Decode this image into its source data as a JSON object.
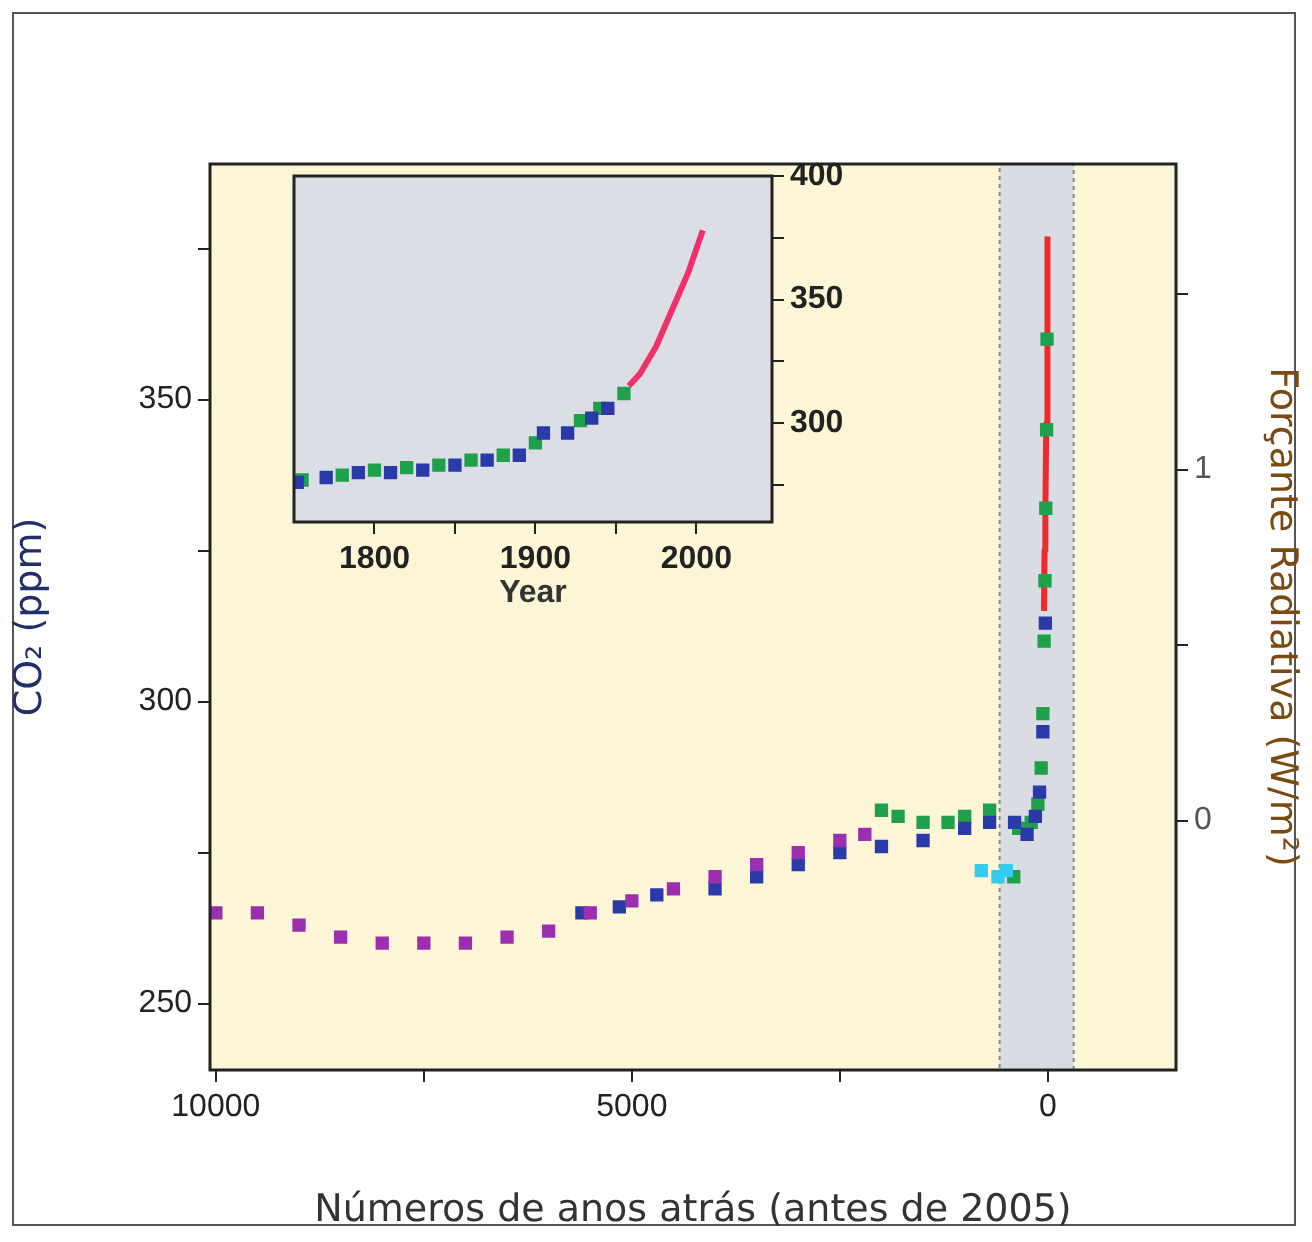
{
  "chart_data": [
    {
      "type": "scatter",
      "xlabel": "Números de anos atrás (antes de 2005)",
      "ylabel": "CO₂ (ppm)",
      "y2label": "Forçante Radiativa (W/m²)",
      "xlim": [
        10070,
        -1540
      ],
      "xticks": [
        10000,
        {
          "value": 7500,
          "label": null
        },
        5000,
        {
          "value": 2500,
          "label": null
        },
        0
      ],
      "ylim": [
        239,
        389
      ],
      "yticks": [
        250,
        {
          "value": 275,
          "label": null
        },
        300,
        {
          "value": 325,
          "label": null
        },
        350,
        {
          "value": 375,
          "label": null
        }
      ],
      "y2lim": [
        -0.71,
        1.87
      ],
      "y2ticks": [
        0,
        {
          "value": 0.5,
          "label": null
        },
        1,
        {
          "value": 1.5,
          "label": null
        }
      ],
      "marker": "square",
      "legend": false,
      "bands": [
        {
          "axis": "x",
          "from": 580,
          "to": -310,
          "color": "#d9dce3"
        }
      ],
      "series": [
        {
          "color": "#9b2fae",
          "x": [
            10000,
            9500,
            9000,
            8500,
            8000,
            7500,
            7000,
            6500,
            6000,
            5500,
            5000,
            4500,
            4000,
            3500,
            3000,
            2500,
            2200
          ],
          "values": [
            265,
            265,
            263,
            261,
            260,
            260,
            260,
            261,
            262,
            265,
            267,
            269,
            271,
            273,
            275,
            277,
            278
          ]
        },
        {
          "color": "#2a3aa8",
          "x": [
            5600,
            5150,
            4700,
            4000,
            3500,
            3000,
            2500,
            2000,
            1500,
            1000,
            700,
            400,
            250,
            150,
            100,
            60,
            30
          ],
          "values": [
            265,
            266,
            268,
            269,
            271,
            273,
            275,
            276,
            277,
            279,
            280,
            280,
            278,
            281,
            285,
            295,
            313
          ]
        },
        {
          "color": "#33ccee",
          "x": [
            800,
            600,
            500
          ],
          "values": [
            272,
            271,
            272
          ]
        },
        {
          "color": "#1fa04a",
          "x": [
            2000,
            1800,
            1500,
            1200,
            1000,
            700,
            410,
            350,
            200,
            120,
            80,
            60,
            45,
            35,
            25,
            15,
            10
          ],
          "values": [
            282,
            281,
            280,
            280,
            281,
            282,
            271,
            279,
            280,
            283,
            289,
            298,
            310,
            320,
            332,
            345,
            360
          ]
        },
        {
          "type": "line",
          "marker": "none",
          "color": "#ee2b2b",
          "x": [
            47,
            40,
            30,
            20,
            10,
            0
          ],
          "values": [
            315,
            325,
            331,
            346,
            361,
            377
          ]
        }
      ]
    },
    {
      "type": "scatter",
      "xlabel": "Year",
      "xlim": [
        1750,
        2047
      ],
      "xticks": [
        1800,
        {
          "value": 1850,
          "label": null
        },
        1900,
        {
          "value": 1950,
          "label": null
        },
        2000
      ],
      "y2lim": [
        260,
        400
      ],
      "y2ticks": [
        {
          "value": 275,
          "label": null
        },
        300,
        {
          "value": 325,
          "label": null
        },
        350,
        {
          "value": 375,
          "label": null
        },
        400
      ],
      "marker": "square",
      "legend": false,
      "series": [
        {
          "axis": "y2",
          "color": "#2a3aa8",
          "x": [
            1752,
            1770,
            1790,
            1810,
            1830,
            1850,
            1870,
            1890,
            1905,
            1920,
            1935,
            1945
          ],
          "values": [
            276,
            278,
            280,
            280,
            281,
            283,
            285,
            287,
            296,
            296,
            302,
            306
          ]
        },
        {
          "axis": "y2",
          "color": "#1fa04a",
          "x": [
            1755,
            1780,
            1800,
            1820,
            1840,
            1860,
            1880,
            1900,
            1928,
            1940,
            1955
          ],
          "values": [
            277,
            279,
            281,
            282,
            283,
            285,
            287,
            292,
            301,
            306,
            312
          ]
        },
        {
          "axis": "y2",
          "type": "line",
          "marker": "none",
          "color": "#f0306a",
          "x": [
            1958,
            1965,
            1975,
            1985,
            1995,
            2004
          ],
          "values": [
            315,
            320,
            331,
            346,
            361,
            378
          ]
        }
      ]
    }
  ]
}
